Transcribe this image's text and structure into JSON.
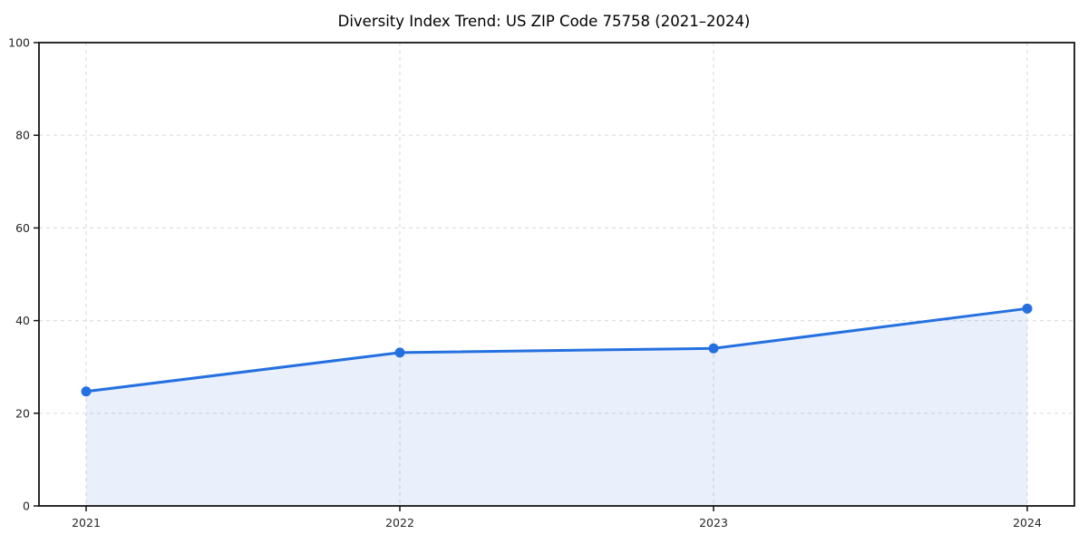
{
  "chart_data": {
    "type": "line",
    "title": "Diversity Index Trend: US ZIP Code 75758 (2021–2024)",
    "categories": [
      "2021",
      "2022",
      "2023",
      "2024"
    ],
    "series": [
      {
        "name": "Diversity Index",
        "values": [
          24.7,
          33.1,
          34.0,
          42.6
        ]
      }
    ],
    "xlabel": "",
    "ylabel": "",
    "ylim": [
      0,
      100
    ],
    "yticks": [
      0,
      20,
      40,
      60,
      80,
      100
    ],
    "grid": true,
    "grid_style": "dashed",
    "legend_position": "none",
    "area_fill": true,
    "marker": "circle",
    "colors": {
      "line": "#2570e0",
      "fill": "#2570e0",
      "fill_opacity": 0.1,
      "grid": "#dedede",
      "axis": "#141414",
      "tick_label": "#262626",
      "title": "#000000"
    }
  }
}
